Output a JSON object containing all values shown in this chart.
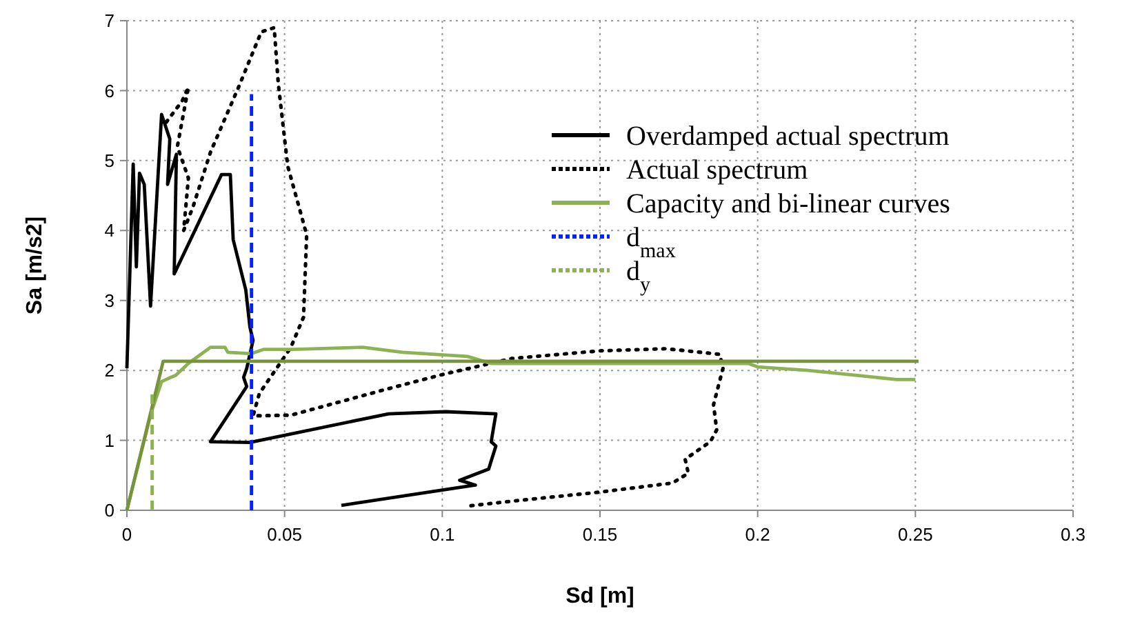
{
  "chart_data": {
    "type": "line",
    "xlabel": "Sd [m]",
    "ylabel": "Sa [m/s2]",
    "xlim": [
      0,
      0.3
    ],
    "ylim": [
      0,
      7
    ],
    "xticks": [
      0,
      0.05,
      0.1,
      0.15,
      0.2,
      0.25,
      0.3
    ],
    "yticks": [
      0,
      1,
      2,
      3,
      4,
      5,
      6,
      7
    ],
    "grid": true,
    "legend": "top right",
    "marker": "none",
    "series": [
      {
        "name": "Overdamped actual spectrum",
        "color": "#000000",
        "line_style": "solid",
        "x": [
          0,
          0.002,
          0.003,
          0.004,
          0.0055,
          0.0075,
          0.011,
          0.0136,
          0.0129,
          0.0157,
          0.015,
          0.03,
          0.0328,
          0.0337,
          0.0377,
          0.039,
          0.04,
          0.038,
          0.037,
          0.038,
          0.0265,
          0.039,
          0.083,
          0.101,
          0.117,
          0.1155,
          0.117,
          0.1147,
          0.1055,
          0.1105,
          0.068
        ],
        "values": [
          2.03,
          4.95,
          3.48,
          4.82,
          4.66,
          2.92,
          5.66,
          5.31,
          4.66,
          5.09,
          3.38,
          4.8,
          4.8,
          3.87,
          3.15,
          2.62,
          2.43,
          2.03,
          1.9,
          1.77,
          0.98,
          0.97,
          1.38,
          1.41,
          1.38,
          0.98,
          0.92,
          0.59,
          0.43,
          0.36,
          0.07
        ]
      },
      {
        "name": "Actual spectrum",
        "color": "#000000",
        "line_style": "dotted",
        "x": [
          0.0125,
          0.0175,
          0.0195,
          0.016,
          0.0195,
          0.018,
          0.0209,
          0.0265,
          0.0356,
          0.0426,
          0.0467,
          0.048,
          0.051,
          0.057,
          0.056,
          0.052,
          0.0496,
          0.042,
          0.04,
          0.052,
          0.083,
          0.1,
          0.122,
          0.15,
          0.171,
          0.188,
          0.189,
          0.186,
          0.187,
          0.185,
          0.177,
          0.178,
          0.173,
          0.15,
          0.122,
          0.108
        ],
        "values": [
          5.55,
          5.85,
          6.05,
          5.2,
          4.75,
          4.0,
          4.33,
          5.12,
          6.07,
          6.84,
          6.9,
          6.1,
          4.92,
          3.94,
          2.76,
          2.33,
          2.17,
          1.67,
          1.35,
          1.36,
          1.74,
          1.94,
          2.17,
          2.28,
          2.31,
          2.23,
          2.03,
          1.51,
          1.15,
          0.98,
          0.73,
          0.53,
          0.39,
          0.26,
          0.13,
          0.06
        ]
      },
      {
        "name": "Capacity and bi-linear curves",
        "color": "#8db255",
        "line_style": "solid",
        "x": [
          0,
          0.0076,
          0.011,
          0.0139,
          0.0155,
          0.0195,
          0.0265,
          0.0311,
          0.032,
          0.0395,
          0.0433,
          0.053,
          0.0748,
          0.0874,
          0.108,
          0.1154,
          0.197,
          0.2,
          0.216,
          0.244,
          0.25
        ],
        "values": [
          0,
          1.38,
          1.84,
          1.9,
          1.93,
          2.1,
          2.33,
          2.33,
          2.26,
          2.24,
          2.3,
          2.3,
          2.33,
          2.26,
          2.2,
          2.1,
          2.1,
          2.05,
          2.0,
          1.87,
          1.87
        ]
      },
      {
        "color": "#77933c",
        "line_style": "solid",
        "x": [
          0,
          0.0115,
          0.251
        ],
        "values": [
          0,
          2.13,
          2.13
        ]
      },
      {
        "name": "d$_{max}$",
        "color": "#0022ff",
        "line_style": "dashed",
        "x": [
          0.0395,
          0.0395
        ],
        "values": [
          0,
          5.95
        ]
      },
      {
        "name": "d$_{y}$",
        "color": "#8db255",
        "line_style": "dashed",
        "x": [
          0.008,
          0.008
        ],
        "values": [
          0,
          1.67
        ]
      }
    ]
  }
}
